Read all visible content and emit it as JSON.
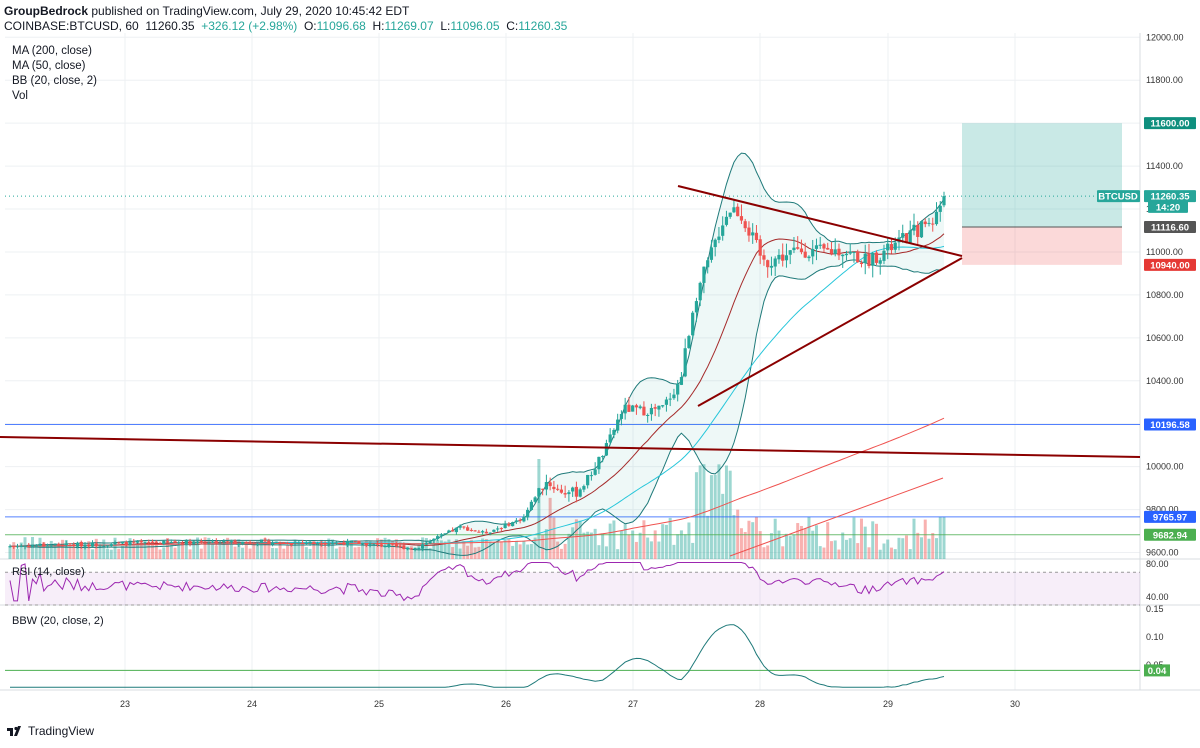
{
  "header": {
    "author": "GroupBedrock",
    "published": "published on TradingView.com, July 29, 2020 10:45:42 EDT",
    "symbol": "COINBASE:BTCUSD, 60",
    "last": "11260.35",
    "change": "+326.12 (+2.98%)",
    "o_label": "O:",
    "o": "11096.68",
    "h_label": "H:",
    "h": "11269.07",
    "l_label": "L:",
    "l": "11096.05",
    "c_label": "C:",
    "c": "11260.35"
  },
  "legend": [
    "MA (200, close)",
    "MA (50, close)",
    "BB (20, close, 2)",
    "Vol"
  ],
  "rsi_label": "RSI (14, close)",
  "bbw_label": "BBW (20, close, 2)",
  "footer": {
    "brand": "TradingView"
  },
  "colors": {
    "up": "#26a69a",
    "down": "#ef5350",
    "ma200": "#ef5350",
    "ma50": "#26c6da",
    "bb": "#1f7a7a",
    "trend": "#8b0000",
    "hline": "#4a90d9",
    "rsi": "#9c27b0"
  },
  "chart_data": [
    {
      "type": "candlestick",
      "symbol": "COINBASE:BTCUSD",
      "interval": "60",
      "x_labels": [
        "23",
        "24",
        "25",
        "26",
        "27",
        "28",
        "29",
        "30"
      ],
      "y_ticks": [
        "12000.00",
        "11800.00",
        "11600.00",
        "11400.00",
        "11200.00",
        "11000.00",
        "10800.00",
        "10600.00",
        "10400.00",
        "10200.00",
        "10000.00",
        "9800.00",
        "9600.00"
      ],
      "ylim": [
        9570,
        12020
      ],
      "price_tags": [
        {
          "label": "11600.00",
          "value": 11600,
          "color": "#0f8f7e"
        },
        {
          "label": "BTCUSD",
          "value": 11260.35,
          "color": "#26a69a"
        },
        {
          "label": "11260.35",
          "value": 11260.35,
          "color": "#26a69a"
        },
        {
          "label": "14:20",
          "value": 11210,
          "color": "#26a69a"
        },
        {
          "label": "11116.60",
          "value": 11116.6,
          "color": "#555555"
        },
        {
          "label": "10940.00",
          "value": 10940,
          "color": "#e53935"
        },
        {
          "label": "10196.58",
          "value": 10196.58,
          "color": "#2962ff"
        },
        {
          "label": "9765.97",
          "value": 9765.97,
          "color": "#2962ff"
        },
        {
          "label": "9682.94",
          "value": 9682.94,
          "color": "#4caf50"
        }
      ],
      "position": {
        "entry": 11116.6,
        "target": 11600,
        "stop": 10940
      },
      "horizontal_lines": [
        10196.58,
        9765.97,
        9682.94
      ],
      "last_price": 11260.35
    },
    {
      "type": "line",
      "name": "RSI (14, close)",
      "y_ticks": [
        "80.00",
        "40.00"
      ],
      "ylim": [
        30,
        85
      ],
      "bands": [
        70,
        30
      ]
    },
    {
      "type": "line",
      "name": "BBW (20, close, 2)",
      "y_ticks": [
        "0.15",
        "0.10",
        "0.05",
        "0.04"
      ],
      "ylim": [
        0.005,
        0.155
      ],
      "tag": "0.04"
    }
  ]
}
